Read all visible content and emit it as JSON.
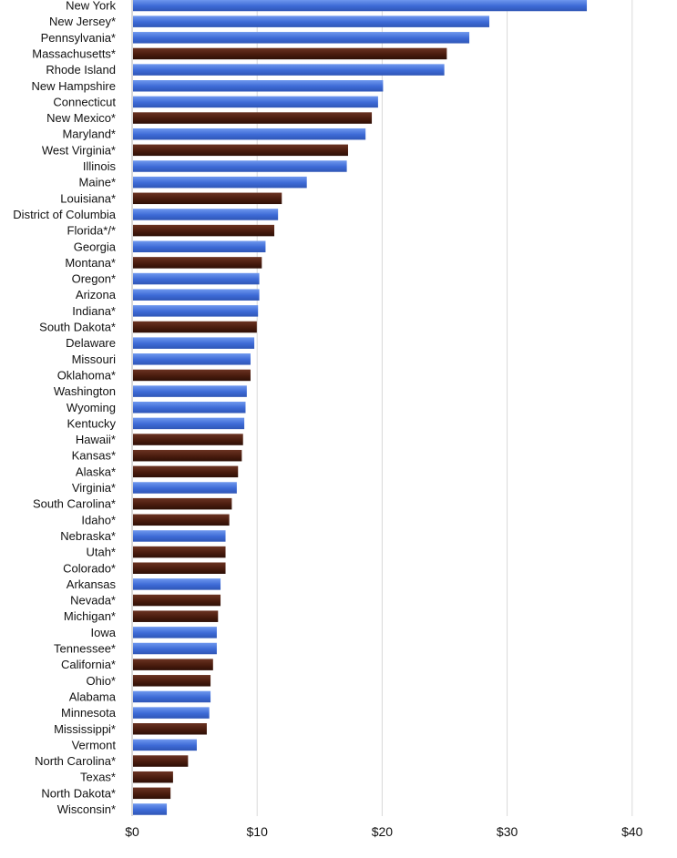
{
  "chart_data": {
    "type": "bar",
    "orientation": "horizontal",
    "title": "",
    "xlabel": "",
    "ylabel": "",
    "xlim": [
      0,
      40
    ],
    "x_ticks": [
      "$0",
      "$10",
      "$20",
      "$30",
      "$40"
    ],
    "grid": true,
    "colors": {
      "blue": "#3f6fd8",
      "brown": "#4a1c0e"
    },
    "categories": [
      "New York",
      "New Jersey*",
      "Pennsylvania*",
      "Massachusetts*",
      "Rhode Island",
      "New Hampshire",
      "Connecticut",
      "New Mexico*",
      "Maryland*",
      "West Virginia*",
      "Illinois",
      "Maine*",
      "Louisiana*",
      "District of Columbia",
      "Florida*/*",
      "Georgia",
      "Montana*",
      "Oregon*",
      "Arizona",
      "Indiana*",
      "South Dakota*",
      "Delaware",
      "Missouri",
      "Oklahoma*",
      "Washington",
      "Wyoming",
      "Kentucky",
      "Hawaii*",
      "Kansas*",
      "Alaska*",
      "Virginia*",
      "South Carolina*",
      "Idaho*",
      "Nebraska*",
      "Utah*",
      "Colorado*",
      "Arkansas",
      "Nevada*",
      "Michigan*",
      "Iowa",
      "Tennessee*",
      "California*",
      "Ohio*",
      "Alabama",
      "Minnesota",
      "Mississippi*",
      "Vermont",
      "North Carolina*",
      "Texas*",
      "North Dakota*",
      "Wisconsin*"
    ],
    "values": [
      36.3,
      28.5,
      26.9,
      25.1,
      24.9,
      20.0,
      19.6,
      19.1,
      18.6,
      17.2,
      17.1,
      13.9,
      11.9,
      11.6,
      11.3,
      10.6,
      10.3,
      10.1,
      10.1,
      10.0,
      9.9,
      9.7,
      9.4,
      9.4,
      9.1,
      9.0,
      8.9,
      8.8,
      8.7,
      8.4,
      8.3,
      7.9,
      7.7,
      7.4,
      7.4,
      7.4,
      7.0,
      7.0,
      6.8,
      6.7,
      6.7,
      6.4,
      6.2,
      6.2,
      6.1,
      5.9,
      5.1,
      4.4,
      3.2,
      3.0,
      2.7
    ],
    "bar_colors": [
      "blue",
      "blue",
      "blue",
      "brown",
      "blue",
      "blue",
      "blue",
      "brown",
      "blue",
      "brown",
      "blue",
      "blue",
      "brown",
      "blue",
      "brown",
      "blue",
      "brown",
      "blue",
      "blue",
      "blue",
      "brown",
      "blue",
      "blue",
      "brown",
      "blue",
      "blue",
      "blue",
      "brown",
      "brown",
      "brown",
      "blue",
      "brown",
      "brown",
      "blue",
      "brown",
      "brown",
      "blue",
      "brown",
      "brown",
      "blue",
      "blue",
      "brown",
      "brown",
      "blue",
      "blue",
      "brown",
      "blue",
      "brown",
      "brown",
      "brown",
      "blue"
    ]
  }
}
